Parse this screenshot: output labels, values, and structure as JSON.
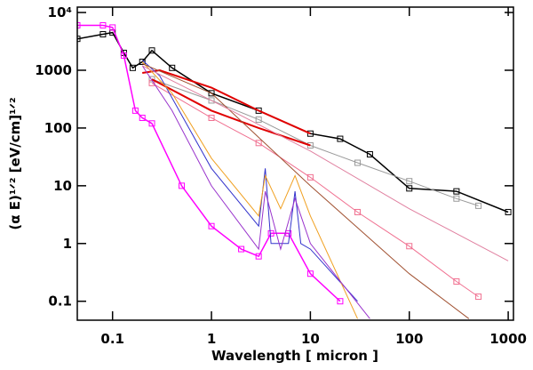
{
  "chart_data": {
    "type": "line",
    "xlabel": "Wavelength [ micron ]",
    "ylabel": "(α E)¹ᐟ² [eV/cm]¹ᐟ²",
    "xscale": "log",
    "yscale": "log",
    "xlim": [
      0.044,
      1130
    ],
    "ylim": [
      0.047,
      12400
    ],
    "xticks": [
      0.1,
      1,
      10,
      100,
      1000
    ],
    "yticks": [
      0.1,
      1,
      10,
      100,
      1000,
      {
        "value": 10000,
        "label": "10⁴"
      }
    ],
    "series": [
      {
        "color": "#000000",
        "marker": "square",
        "width": 1.5,
        "x": [
          0.044,
          0.08,
          0.1,
          0.13,
          0.16,
          0.2,
          0.25,
          0.4,
          1,
          3,
          10,
          20,
          40,
          100,
          300,
          1000
        ],
        "values": [
          3500,
          4200,
          4500,
          2000,
          1100,
          1400,
          2200,
          1100,
          400,
          200,
          80,
          65,
          35,
          9,
          8,
          3.5
        ]
      },
      {
        "color": "#999999",
        "marker": "square",
        "width": 1,
        "x": [
          0.25,
          1,
          3,
          10,
          30,
          100,
          300,
          500
        ],
        "values": [
          700,
          300,
          140,
          50,
          25,
          12,
          6,
          4.5
        ]
      },
      {
        "color": "#f07090",
        "marker": "square",
        "width": 1,
        "x": [
          0.25,
          1,
          3,
          10,
          30,
          100,
          300,
          500
        ],
        "values": [
          600,
          150,
          55,
          14,
          3.5,
          0.9,
          0.22,
          0.12
        ]
      },
      {
        "color": "#ff00ff",
        "marker": "square",
        "width": 1.5,
        "x": [
          0.044,
          0.08,
          0.1,
          0.13,
          0.17,
          0.2,
          0.25,
          0.5,
          1,
          2,
          3,
          4,
          6,
          10,
          20
        ],
        "values": [
          6000,
          6000,
          5500,
          1800,
          200,
          150,
          120,
          10,
          2,
          0.8,
          0.6,
          1.5,
          1.5,
          0.3,
          0.1
        ]
      },
      {
        "color": "#e00000",
        "marker": "none",
        "width": 2,
        "x": [
          0.2,
          0.3,
          1,
          3,
          10
        ],
        "values": [
          900,
          1000,
          500,
          200,
          80
        ]
      },
      {
        "color": "#e00000",
        "marker": "none",
        "width": 2,
        "x": [
          0.25,
          1,
          3,
          10
        ],
        "values": [
          700,
          200,
          100,
          50
        ]
      },
      {
        "color": "#3333cc",
        "marker": "none",
        "width": 1,
        "x": [
          0.2,
          0.3,
          1,
          3,
          3.5,
          4,
          6,
          7,
          8,
          10,
          30
        ],
        "values": [
          1500,
          800,
          20,
          2,
          20,
          1,
          1,
          8,
          1,
          0.8,
          0.1
        ]
      },
      {
        "color": "#f0a020",
        "marker": "none",
        "width": 1,
        "x": [
          0.2,
          0.4,
          1,
          3,
          3.5,
          5,
          7,
          10,
          30
        ],
        "values": [
          1400,
          400,
          30,
          3,
          15,
          4,
          15,
          3,
          0.05
        ]
      },
      {
        "color": "#9933cc",
        "marker": "none",
        "width": 1,
        "x": [
          0.2,
          0.4,
          1,
          3,
          3.5,
          5,
          7,
          10,
          40
        ],
        "values": [
          1200,
          200,
          10,
          0.8,
          8,
          0.8,
          6,
          1,
          0.05
        ]
      },
      {
        "color": "#a05030",
        "marker": "none",
        "width": 1,
        "x": [
          0.2,
          1,
          10,
          100,
          400
        ],
        "values": [
          1300,
          400,
          10,
          0.3,
          0.05
        ]
      },
      {
        "color": "#e080a0",
        "marker": "none",
        "width": 1,
        "x": [
          0.2,
          1,
          10,
          100,
          1000
        ],
        "values": [
          1200,
          300,
          40,
          4,
          0.5
        ]
      }
    ]
  }
}
